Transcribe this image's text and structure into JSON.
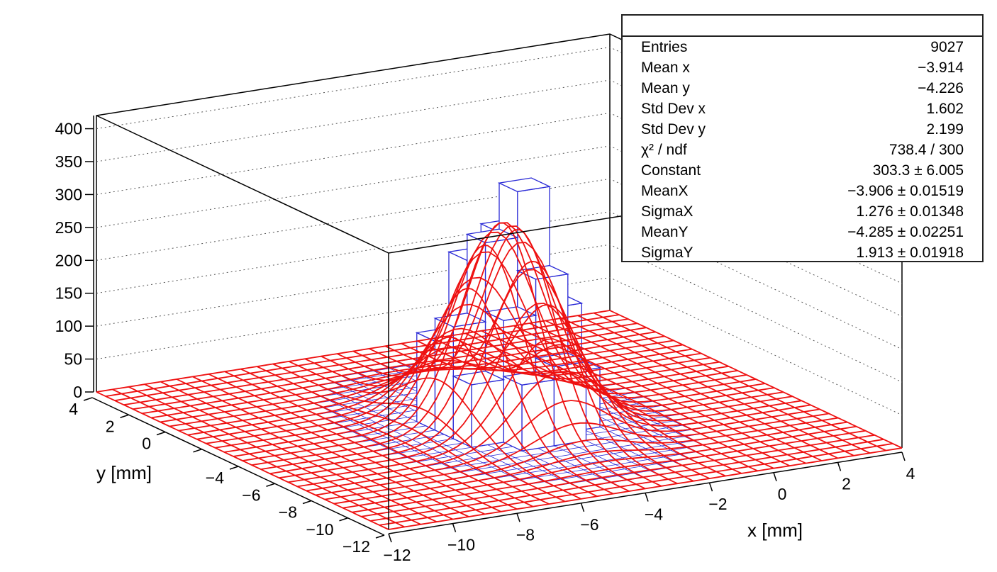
{
  "chart_data": {
    "type": "lego3d_with_surface_fit",
    "xlabel": "x [mm]",
    "ylabel": "y [mm]",
    "zlabel": "",
    "xlim": [
      -12,
      4
    ],
    "ylim": [
      -12,
      4
    ],
    "zlim": [
      0,
      420
    ],
    "x_ticks": [
      "−12",
      "−10",
      "−8",
      "−6",
      "−4",
      "−2",
      "0",
      "2",
      "4"
    ],
    "y_ticks": [
      "−12",
      "−10",
      "−8",
      "−6",
      "−4",
      "−2",
      "0",
      "2",
      "4"
    ],
    "z_ticks": [
      "0",
      "50",
      "100",
      "150",
      "200",
      "250",
      "300",
      "350",
      "400"
    ],
    "grid": true,
    "colors": {
      "histogram": "#2a2ad6",
      "fit": "#ee1111",
      "frame": "#000000"
    },
    "fit": {
      "function": "2D Gaussian",
      "constant": 303.3,
      "mean_x": -3.906,
      "sigma_x": 1.276,
      "mean_y": -4.285,
      "sigma_y": 1.913
    },
    "peak_bins": [
      {
        "x": -3.5,
        "y": -4.5,
        "z": 360
      },
      {
        "x": -4.5,
        "y": -4.5,
        "z": 290
      },
      {
        "x": -3.5,
        "y": -3.5,
        "z": 285
      },
      {
        "x": -4.5,
        "y": -3.5,
        "z": 250
      },
      {
        "x": -3.5,
        "y": -5.5,
        "z": 240
      },
      {
        "x": -4.5,
        "y": -5.5,
        "z": 185
      },
      {
        "x": -5.5,
        "y": -4.5,
        "z": 170
      },
      {
        "x": -2.5,
        "y": -4.5,
        "z": 175
      },
      {
        "x": -3.5,
        "y": -2.5,
        "z": 150
      },
      {
        "x": -5.5,
        "y": -3.5,
        "z": 135
      },
      {
        "x": -3.5,
        "y": -6.5,
        "z": 120
      },
      {
        "x": -2.5,
        "y": -3.5,
        "z": 140
      },
      {
        "x": -4.5,
        "y": -6.5,
        "z": 100
      },
      {
        "x": -5.5,
        "y": -5.5,
        "z": 95
      },
      {
        "x": -2.5,
        "y": -5.5,
        "z": 90
      },
      {
        "x": -4.5,
        "y": -2.5,
        "z": 110
      }
    ]
  },
  "stats": {
    "rows": [
      {
        "label": "Entries",
        "value": "9027"
      },
      {
        "label": "Mean x",
        "value": "−3.914"
      },
      {
        "label": "Mean y",
        "value": "−4.226"
      },
      {
        "label": "Std Dev x",
        "value": "1.602"
      },
      {
        "label": "Std Dev y",
        "value": "2.199"
      },
      {
        "label": "χ² / ndf",
        "value": "738.4 / 300"
      },
      {
        "label": "Constant",
        "value": "303.3 ± 6.005"
      },
      {
        "label": "MeanX",
        "value": "−3.906 ± 0.01519"
      },
      {
        "label": "SigmaX",
        "value": "1.276 ± 0.01348"
      },
      {
        "label": "MeanY",
        "value": "−4.285 ± 0.02251"
      },
      {
        "label": "SigmaY",
        "value": "1.913 ± 0.01918"
      }
    ]
  }
}
